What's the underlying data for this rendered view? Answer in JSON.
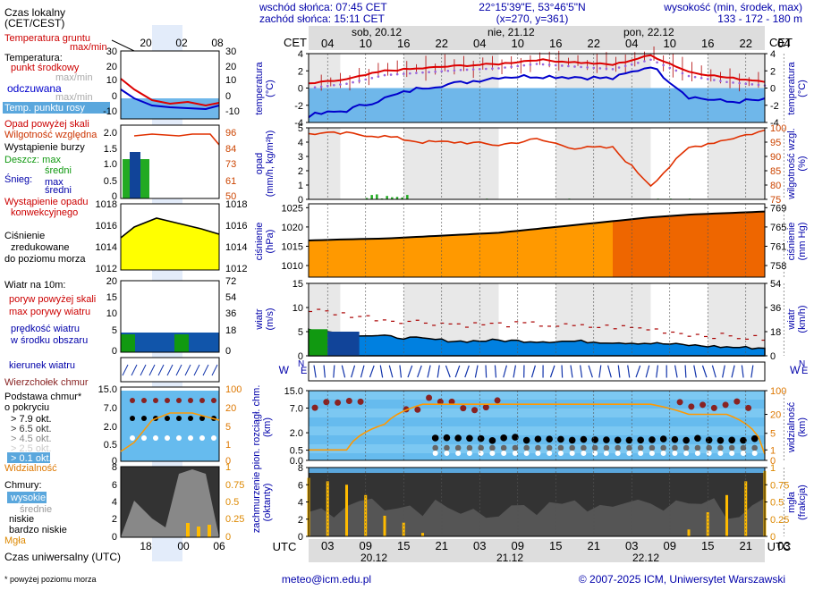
{
  "header": {
    "sunrise": "wschód słońca: 07:45 CET",
    "sunset": "zachód słońca: 15:11 CET",
    "coords": "22°15'39\"E, 53°46'5\"N",
    "grid": "(x=270, y=361)",
    "elev_title": "wysokość (min, środek, max)",
    "elev_values": "133 - 172 - 180 m",
    "cet": "CET",
    "utc": "UTC"
  },
  "days": [
    {
      "top": "sob, 20.12",
      "bottom": "20.12"
    },
    {
      "top": "nie, 21.12",
      "bottom": "21.12"
    },
    {
      "top": "pon, 22.12",
      "bottom": "22.12"
    }
  ],
  "cet_ticks": [
    "04",
    "10",
    "16",
    "22",
    "04",
    "10",
    "16",
    "22",
    "04",
    "10",
    "16",
    "22",
    "04"
  ],
  "utc_ticks": [
    "03",
    "09",
    "15",
    "21",
    "03",
    "09",
    "15",
    "21",
    "03",
    "09",
    "15",
    "21",
    "03"
  ],
  "legend": {
    "local_time": "Czas lokalny",
    "local_time2": "(CET/CEST)",
    "lt_ticks": [
      "20",
      "02",
      "08"
    ],
    "temp_soil": "Temperatura gruntu",
    "temp_soil2": "max/min",
    "temp": "Temperatura:",
    "temp_mid": "punkt środkowy",
    "temp_maxmin": "max/min",
    "sensible": "odczuwana",
    "sensible2": "max/min",
    "dew": "Temp. punktu rosy",
    "temp_ticks": [
      "30",
      "20",
      "10",
      "0",
      "-10"
    ],
    "precip_over": "Opad powyżej skali",
    "rh": "Wilgotność względna",
    "storm": "Wystąpienie burzy",
    "rain": "Deszcz: max",
    "rain_mid": "średni",
    "snow": "Śnieg:",
    "snow_max": "max",
    "snow_mid": "średni",
    "conv": "Wystąpienie opadu",
    "conv2": "konwekcyjnego",
    "precip_ticks": [
      "2.0",
      "1.5",
      "1.0",
      "0.5",
      "0"
    ],
    "rh_ticks": [
      "96",
      "84",
      "73",
      "61",
      "50"
    ],
    "pressure": "Ciśnienie",
    "pressure2": "zredukowane",
    "pressure3": "do poziomu morza",
    "pressure_ticks": [
      "1018",
      "1016",
      "1014",
      "1012"
    ],
    "wind": "Wiatr na 10m:",
    "gust_over": "poryw powyżej skali",
    "gust_max": "max porywy wiatru",
    "wind_speed": "prędkość wiatru",
    "wind_speed2": "w środku obszaru",
    "wind_ticks": [
      "20",
      "15",
      "10",
      "5",
      "0"
    ],
    "wind_kmh": [
      "72",
      "54",
      "36",
      "18",
      "0"
    ],
    "wind_dir": "kierunek wiatru",
    "cloud_top": "Wierzchołek chmur",
    "cloud_base": "Podstawa chmur*",
    "cloud_base2": "o pokryciu",
    "okt": [
      "> 7.9 okt.",
      "> 6.5 okt.",
      "> 4.5 okt.",
      "> 2.5 okt.",
      "> 0.1 okt."
    ],
    "visibility": "Widzialność",
    "cloud_ticks": [
      "15.0",
      "7.0",
      "2.0",
      "0.5",
      "0"
    ],
    "vis_ticks": [
      "100",
      "20",
      "5",
      "1",
      "0"
    ],
    "clouds": "Chmury:",
    "high": "wysokie",
    "mid": "średnie",
    "low": "niskie",
    "vlow": "bardzo niskie",
    "fog": "Mgła",
    "cover_ticks": [
      "8",
      "6",
      "4",
      "2",
      "0"
    ],
    "fog_ticks": [
      "1",
      "0.75",
      "0.5",
      "0.25",
      "0"
    ],
    "utc_time": "Czas uniwersalny (UTC)",
    "ut_ticks": [
      "18",
      "00",
      "06"
    ],
    "footnote": "* powyżej poziomu morza"
  },
  "axis_labels": {
    "temp_l": [
      "temperatura",
      "(°C)"
    ],
    "temp_r": [
      "temperatura",
      "(°C)"
    ],
    "precip_l": [
      "opad",
      "(mm/h, kg/m²h)"
    ],
    "precip_r": [
      "wilgotność wzgl.",
      "(%)"
    ],
    "press_l": [
      "ciśnienie",
      "(hPa)"
    ],
    "press_r": [
      "ciśnienie",
      "(mm Hg)"
    ],
    "wind_l": [
      "wiatr",
      "(m/s)"
    ],
    "wind_r": [
      "wiatr",
      "(km/h)"
    ],
    "cloud_l": [
      "pion. rozciągł. chm.",
      "(km)"
    ],
    "cloud_r": [
      "widzialność",
      "(km)"
    ],
    "cover_l": [
      "zachmurzenie",
      "(oktanty)"
    ],
    "cover_r": [
      "mgła",
      "(frakcja)"
    ],
    "compass": [
      "W",
      "E",
      "N",
      "S"
    ]
  },
  "footer": {
    "email": "meteo@icm.edu.pl",
    "copyright": "© 2007-2025 ICM, Uniwersytet Warszawski"
  },
  "colors": {
    "temp": "#dd0000",
    "dew": "#0000cc",
    "rh": "#e03000",
    "pressure_fill": "#ff9900",
    "wind_fill": "#0080e0",
    "cloud_bg": "#66bbee",
    "cover_bg": "#333333",
    "fog": "#ffbb00"
  },
  "chart_data": [
    {
      "type": "line",
      "title": "temperatura",
      "ylabel": "temperatura (°C)",
      "ylim": [
        -4,
        4
      ],
      "x": [
        0,
        6,
        12,
        18,
        24,
        30,
        36,
        42,
        48,
        54,
        60,
        66,
        72
      ],
      "series": [
        {
          "name": "temperatura",
          "values": [
            0.5,
            1.0,
            2.0,
            2.3,
            2.6,
            2.8,
            3.3,
            3.0,
            2.7,
            3.8,
            1.9,
            1.2,
            0.8
          ]
        },
        {
          "name": "punkt rosy",
          "values": [
            -3.2,
            -2.6,
            -1.2,
            0.1,
            0.6,
            1.3,
            1.4,
            1.3,
            1.1,
            2.6,
            -1.0,
            -1.6,
            -1.4
          ]
        }
      ]
    },
    {
      "type": "line",
      "title": "opad i wilgotność względna",
      "ylabel": "opad (mm/h)",
      "ylim": [
        0,
        5
      ],
      "x": [
        0,
        6,
        12,
        18,
        24,
        30,
        36,
        42,
        48,
        54,
        60,
        66,
        72
      ],
      "series": [
        {
          "name": "wilgotność (%)",
          "values": [
            98,
            98,
            97,
            95,
            95,
            94,
            96,
            93,
            93,
            80,
            93,
            96,
            99
          ]
        },
        {
          "name": "opad (mm/h)",
          "values": [
            0,
            0,
            0.2,
            0,
            0,
            0,
            0,
            0,
            0,
            0,
            0,
            0,
            0
          ]
        }
      ]
    },
    {
      "type": "area",
      "title": "ciśnienie",
      "ylabel": "ciśnienie (hPa)",
      "ylim": [
        1007,
        1026
      ],
      "x": [
        0,
        6,
        12,
        18,
        24,
        30,
        36,
        42,
        48,
        54,
        60,
        66,
        72
      ],
      "values": [
        1016.5,
        1016.8,
        1017.0,
        1017.5,
        1018.0,
        1018.5,
        1019.5,
        1020.5,
        1021.5,
        1022.5,
        1023.2,
        1023.6,
        1024.0
      ]
    },
    {
      "type": "area",
      "title": "wiatr",
      "ylabel": "wiatr (m/s)",
      "ylim": [
        0,
        15
      ],
      "x": [
        0,
        6,
        12,
        18,
        24,
        30,
        36,
        42,
        48,
        54,
        60,
        66,
        72
      ],
      "series": [
        {
          "name": "prędkość",
          "values": [
            5.5,
            4.5,
            4.0,
            3.5,
            3.0,
            3.2,
            3.0,
            3.0,
            2.8,
            2.6,
            2.2,
            1.8,
            1.6
          ]
        },
        {
          "name": "porywy max",
          "values": [
            9.5,
            8.5,
            7.5,
            7.0,
            6.5,
            6.5,
            6.5,
            6.0,
            6.0,
            5.5,
            4.5,
            4.0,
            3.5
          ]
        }
      ]
    },
    {
      "type": "line",
      "title": "widzialność",
      "ylabel": "widzialność (km)",
      "ylim": [
        0,
        100
      ],
      "x": [
        0,
        6,
        12,
        18,
        24,
        30,
        36,
        42,
        48,
        54,
        60,
        66,
        72
      ],
      "values": [
        1,
        1,
        10,
        40,
        40,
        40,
        40,
        40,
        40,
        40,
        20,
        20,
        0.5
      ]
    },
    {
      "type": "bar",
      "title": "mgła",
      "ylabel": "mgła (frakcja)",
      "ylim": [
        0,
        1
      ],
      "x": [
        0,
        3,
        6,
        9,
        12,
        15,
        18,
        21,
        24,
        27,
        30,
        33,
        36,
        39,
        42,
        45,
        48,
        51,
        54,
        57,
        60,
        63,
        66,
        69,
        72
      ],
      "values": [
        0.85,
        0.8,
        0.75,
        0.6,
        0.3,
        0.2,
        0.05,
        0,
        0,
        0,
        0,
        0,
        0,
        0,
        0,
        0,
        0,
        0,
        0,
        0,
        0.1,
        0.35,
        0.6,
        0.8,
        0.95
      ]
    }
  ]
}
